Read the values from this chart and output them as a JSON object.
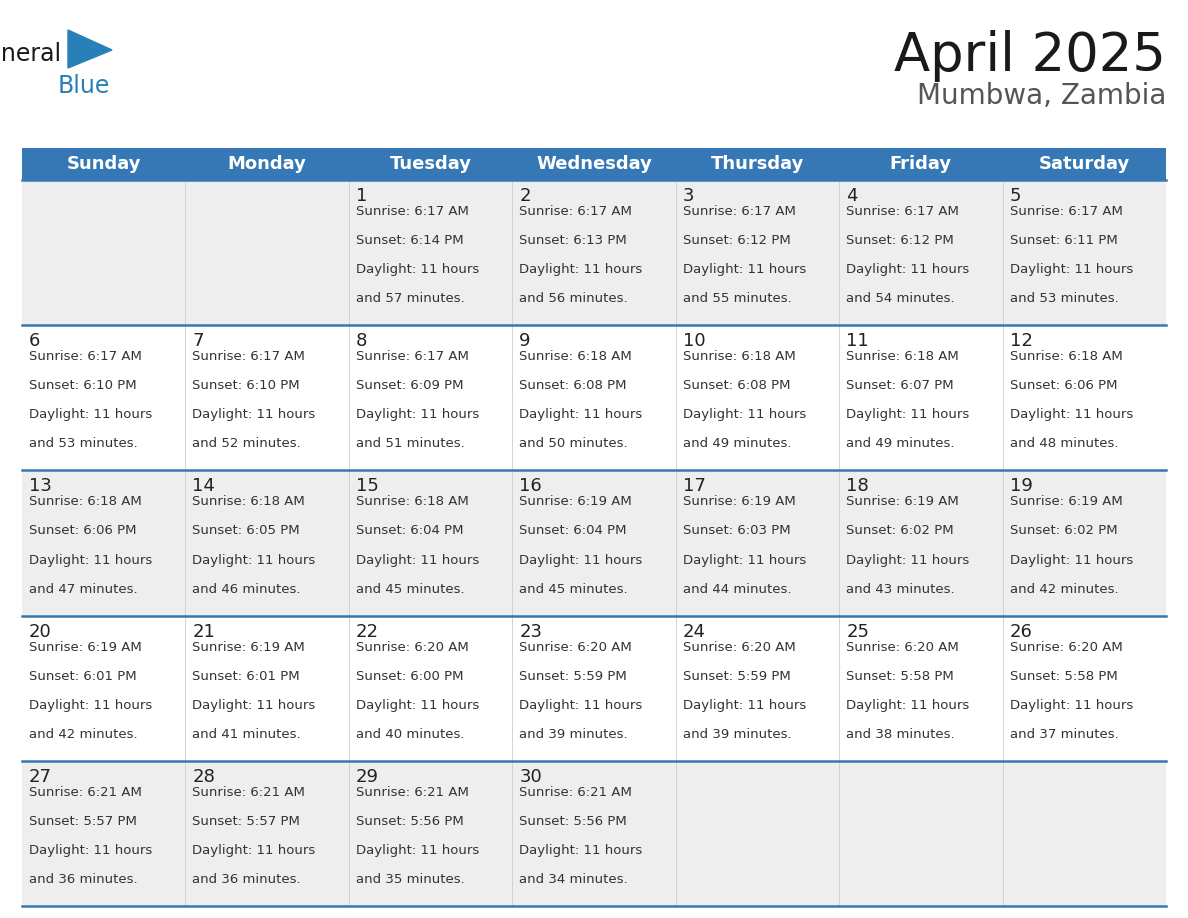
{
  "title": "April 2025",
  "subtitle": "Mumbwa, Zambia",
  "header_color": "#3578b5",
  "header_text_color": "#ffffff",
  "cell_bg_even": "#eeeeee",
  "cell_bg_odd": "#ffffff",
  "text_color": "#222222",
  "cell_text_color": "#333333",
  "day_names": [
    "Sunday",
    "Monday",
    "Tuesday",
    "Wednesday",
    "Thursday",
    "Friday",
    "Saturday"
  ],
  "title_fontsize": 38,
  "subtitle_fontsize": 20,
  "header_fontsize": 13,
  "day_num_fontsize": 13,
  "cell_fontsize": 9.5,
  "weeks": [
    [
      {
        "day": null,
        "sunrise": null,
        "sunset": null,
        "daylight": null
      },
      {
        "day": null,
        "sunrise": null,
        "sunset": null,
        "daylight": null
      },
      {
        "day": 1,
        "sunrise": "6:17 AM",
        "sunset": "6:14 PM",
        "daylight": "11 hours and 57 minutes."
      },
      {
        "day": 2,
        "sunrise": "6:17 AM",
        "sunset": "6:13 PM",
        "daylight": "11 hours and 56 minutes."
      },
      {
        "day": 3,
        "sunrise": "6:17 AM",
        "sunset": "6:12 PM",
        "daylight": "11 hours and 55 minutes."
      },
      {
        "day": 4,
        "sunrise": "6:17 AM",
        "sunset": "6:12 PM",
        "daylight": "11 hours and 54 minutes."
      },
      {
        "day": 5,
        "sunrise": "6:17 AM",
        "sunset": "6:11 PM",
        "daylight": "11 hours and 53 minutes."
      }
    ],
    [
      {
        "day": 6,
        "sunrise": "6:17 AM",
        "sunset": "6:10 PM",
        "daylight": "11 hours and 53 minutes."
      },
      {
        "day": 7,
        "sunrise": "6:17 AM",
        "sunset": "6:10 PM",
        "daylight": "11 hours and 52 minutes."
      },
      {
        "day": 8,
        "sunrise": "6:17 AM",
        "sunset": "6:09 PM",
        "daylight": "11 hours and 51 minutes."
      },
      {
        "day": 9,
        "sunrise": "6:18 AM",
        "sunset": "6:08 PM",
        "daylight": "11 hours and 50 minutes."
      },
      {
        "day": 10,
        "sunrise": "6:18 AM",
        "sunset": "6:08 PM",
        "daylight": "11 hours and 49 minutes."
      },
      {
        "day": 11,
        "sunrise": "6:18 AM",
        "sunset": "6:07 PM",
        "daylight": "11 hours and 49 minutes."
      },
      {
        "day": 12,
        "sunrise": "6:18 AM",
        "sunset": "6:06 PM",
        "daylight": "11 hours and 48 minutes."
      }
    ],
    [
      {
        "day": 13,
        "sunrise": "6:18 AM",
        "sunset": "6:06 PM",
        "daylight": "11 hours and 47 minutes."
      },
      {
        "day": 14,
        "sunrise": "6:18 AM",
        "sunset": "6:05 PM",
        "daylight": "11 hours and 46 minutes."
      },
      {
        "day": 15,
        "sunrise": "6:18 AM",
        "sunset": "6:04 PM",
        "daylight": "11 hours and 45 minutes."
      },
      {
        "day": 16,
        "sunrise": "6:19 AM",
        "sunset": "6:04 PM",
        "daylight": "11 hours and 45 minutes."
      },
      {
        "day": 17,
        "sunrise": "6:19 AM",
        "sunset": "6:03 PM",
        "daylight": "11 hours and 44 minutes."
      },
      {
        "day": 18,
        "sunrise": "6:19 AM",
        "sunset": "6:02 PM",
        "daylight": "11 hours and 43 minutes."
      },
      {
        "day": 19,
        "sunrise": "6:19 AM",
        "sunset": "6:02 PM",
        "daylight": "11 hours and 42 minutes."
      }
    ],
    [
      {
        "day": 20,
        "sunrise": "6:19 AM",
        "sunset": "6:01 PM",
        "daylight": "11 hours and 42 minutes."
      },
      {
        "day": 21,
        "sunrise": "6:19 AM",
        "sunset": "6:01 PM",
        "daylight": "11 hours and 41 minutes."
      },
      {
        "day": 22,
        "sunrise": "6:20 AM",
        "sunset": "6:00 PM",
        "daylight": "11 hours and 40 minutes."
      },
      {
        "day": 23,
        "sunrise": "6:20 AM",
        "sunset": "5:59 PM",
        "daylight": "11 hours and 39 minutes."
      },
      {
        "day": 24,
        "sunrise": "6:20 AM",
        "sunset": "5:59 PM",
        "daylight": "11 hours and 39 minutes."
      },
      {
        "day": 25,
        "sunrise": "6:20 AM",
        "sunset": "5:58 PM",
        "daylight": "11 hours and 38 minutes."
      },
      {
        "day": 26,
        "sunrise": "6:20 AM",
        "sunset": "5:58 PM",
        "daylight": "11 hours and 37 minutes."
      }
    ],
    [
      {
        "day": 27,
        "sunrise": "6:21 AM",
        "sunset": "5:57 PM",
        "daylight": "11 hours and 36 minutes."
      },
      {
        "day": 28,
        "sunrise": "6:21 AM",
        "sunset": "5:57 PM",
        "daylight": "11 hours and 36 minutes."
      },
      {
        "day": 29,
        "sunrise": "6:21 AM",
        "sunset": "5:56 PM",
        "daylight": "11 hours and 35 minutes."
      },
      {
        "day": 30,
        "sunrise": "6:21 AM",
        "sunset": "5:56 PM",
        "daylight": "11 hours and 34 minutes."
      },
      {
        "day": null,
        "sunrise": null,
        "sunset": null,
        "daylight": null
      },
      {
        "day": null,
        "sunrise": null,
        "sunset": null,
        "daylight": null
      },
      {
        "day": null,
        "sunrise": null,
        "sunset": null,
        "daylight": null
      }
    ]
  ]
}
